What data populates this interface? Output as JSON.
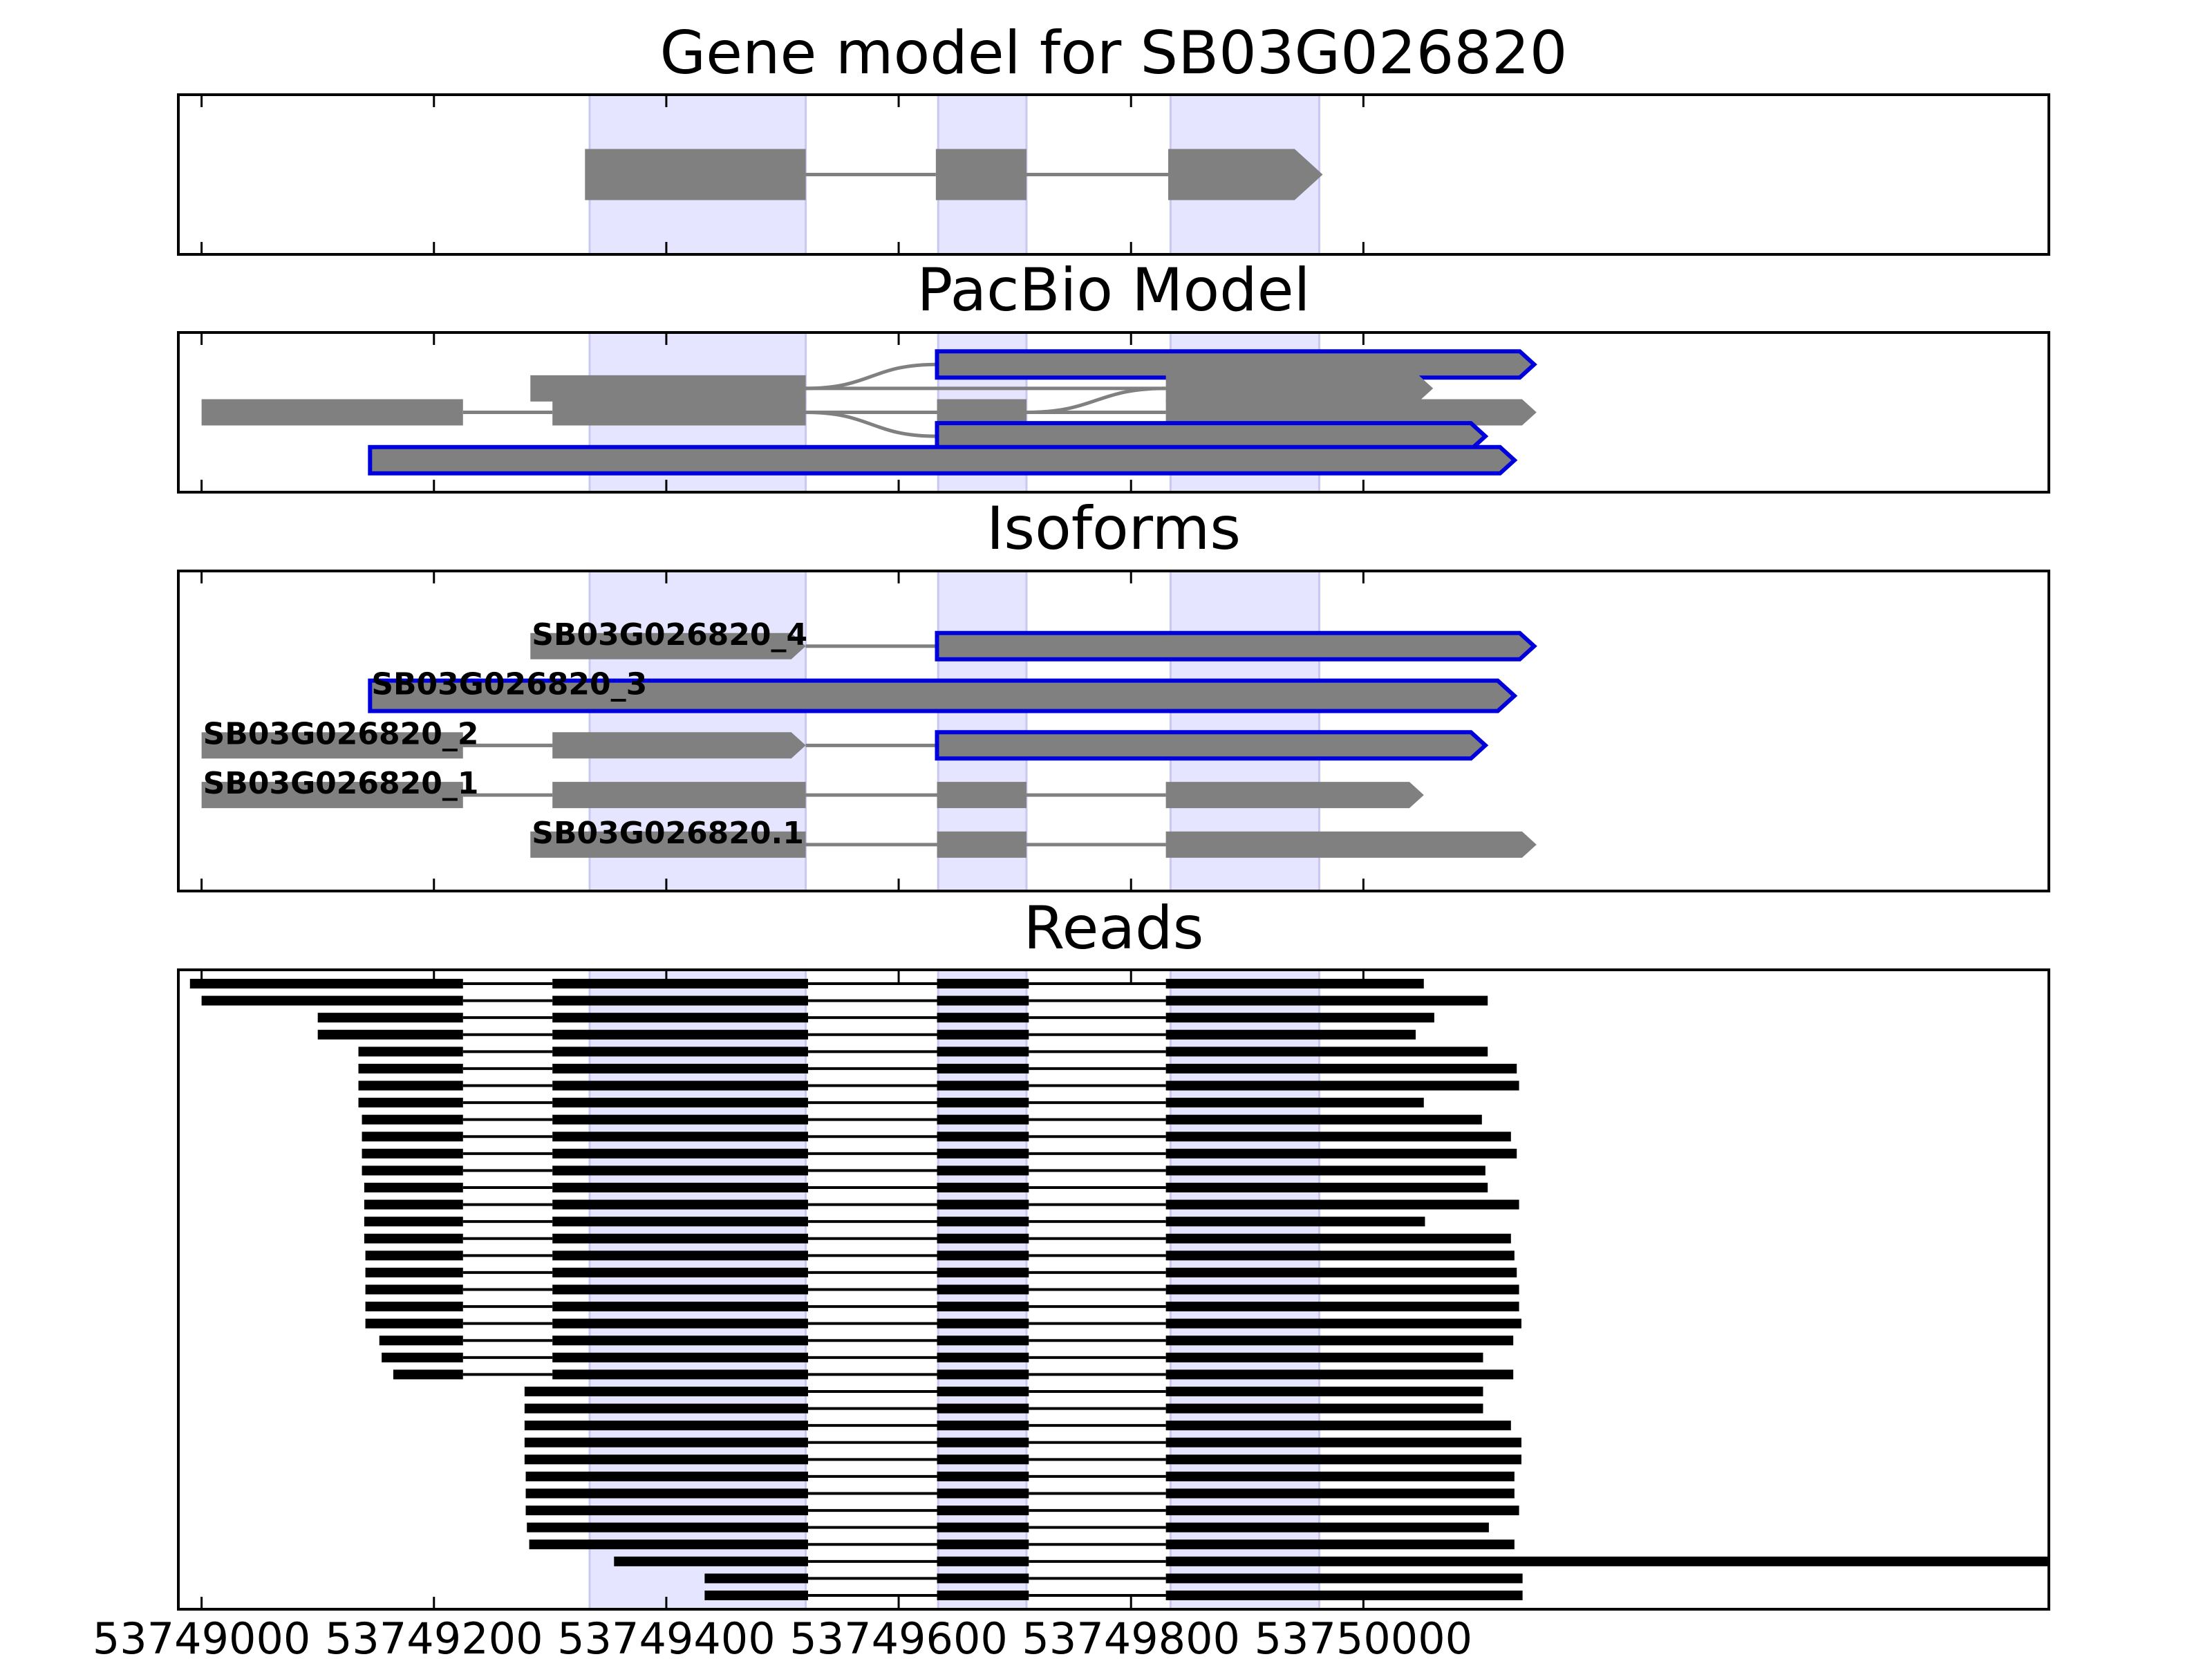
{
  "colors": {
    "exon_fill": "#808080",
    "highlight_fill": "#e5e5ff",
    "highlight_edge": "#c8c8f0",
    "selected_edge": "#0000dd",
    "intron": "#808080",
    "read": "#000000",
    "frame": "#000000"
  },
  "chart_data": {
    "type": "diagram",
    "xlim": [
      53748980,
      53750590
    ],
    "x_ticks": [
      53749000,
      53749200,
      53749400,
      53749600,
      53749800,
      53750000
    ],
    "x_tick_labels": [
      "53749000",
      "53749200",
      "53749400",
      "53749600",
      "53749800",
      "53750000"
    ],
    "highlight_regions": [
      [
        53749334,
        53749520
      ],
      [
        53749634,
        53749710
      ],
      [
        53749834,
        53749962
      ]
    ],
    "panels": [
      {
        "id": "gene_model",
        "title": "Gene model for SB03G026820",
        "ylim": [
          0,
          1
        ],
        "tracks": [
          {
            "y": 0.5,
            "selected": false,
            "exons": [
              [
                53749330,
                53749520
              ],
              [
                53749632,
                53749710
              ],
              [
                53749832,
                53749965
              ]
            ]
          }
        ]
      },
      {
        "id": "pacbio_model",
        "title": "PacBio Model",
        "ylim": [
          0,
          1
        ],
        "tracks": [
          {
            "y": 0.8,
            "selected": true,
            "exons": [
              [
                53749633,
                53750147
              ]
            ],
            "junctions": []
          },
          {
            "y": 0.65,
            "selected": false,
            "exons": [
              [
                53749283,
                53749520
              ],
              [
                53749830,
                53750060
              ]
            ],
            "junctions": []
          },
          {
            "y": 0.5,
            "selected": false,
            "exons": [
              [
                53749000,
                53749225
              ],
              [
                53749302,
                53749520
              ],
              [
                53749633,
                53749710
              ],
              [
                53749830,
                53750149
              ]
            ],
            "junctions": []
          },
          {
            "y": 0.35,
            "selected": true,
            "exons": [
              [
                53749633,
                53750105
              ]
            ],
            "junctions": []
          },
          {
            "y": 0.2,
            "selected": true,
            "exons": [
              [
                53749145,
                53750130
              ]
            ],
            "junctions": []
          }
        ],
        "curved_links": [
          {
            "from": [
              53749520,
              0.65
            ],
            "to": [
              53749633,
              0.8
            ]
          },
          {
            "from": [
              53749520,
              0.5
            ],
            "to": [
              53749633,
              0.35
            ]
          },
          {
            "from": [
              53749710,
              0.5
            ],
            "to": [
              53749830,
              0.65
            ]
          }
        ]
      },
      {
        "id": "isoforms",
        "title": "Isoforms",
        "ylim": [
          0,
          1
        ],
        "tracks": [
          {
            "label": "SB03G026820_4",
            "y": 0.765,
            "selected": false,
            "exons": [
              [
                53749283,
                53749520
              ]
            ]
          },
          {
            "label": "",
            "y": 0.765,
            "selected": true,
            "exons": [
              [
                53749633,
                53750147
              ]
            ]
          },
          {
            "label": "SB03G026820_3",
            "y": 0.61,
            "selected": true,
            "exons": [
              [
                53749145,
                53750130
              ]
            ]
          },
          {
            "label": "SB03G026820_2",
            "y": 0.455,
            "selected": false,
            "exons": [
              [
                53749000,
                53749225
              ],
              [
                53749302,
                53749520
              ]
            ]
          },
          {
            "label": "",
            "y": 0.455,
            "selected": true,
            "exons": [
              [
                53749633,
                53750105
              ]
            ]
          },
          {
            "label": "SB03G026820_1",
            "y": 0.3,
            "selected": false,
            "exons": [
              [
                53749000,
                53749225
              ],
              [
                53749302,
                53749520
              ],
              [
                53749633,
                53749710
              ],
              [
                53749830,
                53750052
              ]
            ]
          },
          {
            "label": "SB03G026820.1",
            "y": 0.145,
            "selected": false,
            "exons": [
              [
                53749283,
                53749520
              ],
              [
                53749633,
                53749710
              ],
              [
                53749830,
                53750149
              ]
            ]
          }
        ],
        "intron_links": [
          {
            "y": 0.765,
            "from": 53749520,
            "to": 53749633
          },
          {
            "y": 0.455,
            "from": 53749225,
            "to": 53749302
          },
          {
            "y": 0.455,
            "from": 53749520,
            "to": 53749633
          }
        ]
      },
      {
        "id": "reads",
        "title": "Reads",
        "ylim": [
          0,
          1
        ],
        "read_exon_starts": [
          53749302,
          53749633,
          53749830
        ],
        "read_exon_ends": [
          53749225,
          53749522,
          53749712
        ],
        "reads": [
          [
            53748990,
            53750052
          ],
          [
            53749000,
            53750107
          ],
          [
            53749100,
            53750061
          ],
          [
            53749100,
            53750045
          ],
          [
            53749135,
            53750107
          ],
          [
            53749135,
            53750132
          ],
          [
            53749135,
            53750134
          ],
          [
            53749135,
            53750052
          ],
          [
            53749138,
            53750102
          ],
          [
            53749138,
            53750127
          ],
          [
            53749138,
            53750132
          ],
          [
            53749138,
            53750105
          ],
          [
            53749140,
            53750107
          ],
          [
            53749140,
            53750134
          ],
          [
            53749140,
            53750053
          ],
          [
            53749140,
            53750127
          ],
          [
            53749141,
            53750130
          ],
          [
            53749141,
            53750132
          ],
          [
            53749141,
            53750134
          ],
          [
            53749141,
            53750134
          ],
          [
            53749141,
            53750136
          ],
          [
            53749153,
            53750129
          ],
          [
            53749155,
            53750103
          ],
          [
            53749165,
            53750129
          ],
          [
            53749278,
            53750103
          ],
          [
            53749278,
            53750103
          ],
          [
            53749278,
            53750127
          ],
          [
            53749278,
            53750136
          ],
          [
            53749278,
            53750136
          ],
          [
            53749279,
            53750130
          ],
          [
            53749279,
            53750130
          ],
          [
            53749279,
            53750134
          ],
          [
            53749280,
            53750108
          ],
          [
            53749282,
            53750130
          ],
          [
            53749355,
            53750590
          ],
          [
            53749433,
            53750137
          ],
          [
            53749433,
            53750137
          ]
        ]
      }
    ]
  }
}
